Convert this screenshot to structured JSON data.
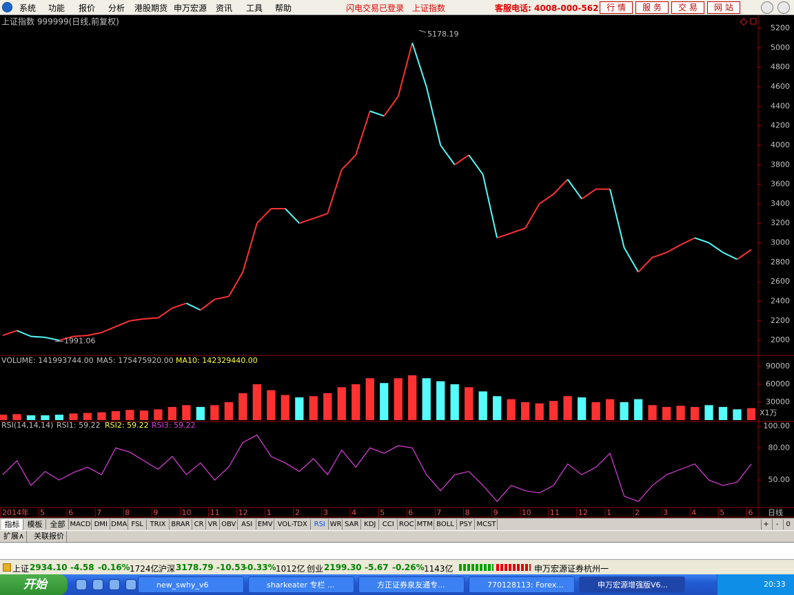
{
  "menu": {
    "items": [
      "系统",
      "功能",
      "报价",
      "分析",
      "港股期货",
      "申万宏源",
      "资讯",
      "工具",
      "帮助"
    ],
    "notices": [
      "闪电交易已登录",
      "上证指数"
    ],
    "hotline": "客服电话: 4008-000-562",
    "buttons": [
      "行 情",
      "服 务",
      "交 易",
      "网 站"
    ]
  },
  "chart_data": [
    {
      "type": "line",
      "title": "上证指数 999999(日线,前复权)",
      "up_color": "#ff3232",
      "down_color": "#54fcfc",
      "values": [
        2050,
        2100,
        2040,
        2030,
        2000,
        2040,
        2050,
        2080,
        2140,
        2200,
        2220,
        2230,
        2330,
        2380,
        2310,
        2420,
        2450,
        2700,
        3200,
        3350,
        3350,
        3200,
        3250,
        3300,
        3750,
        3900,
        4350,
        4300,
        4500,
        5050,
        4600,
        4000,
        3800,
        3900,
        3700,
        3050,
        3100,
        3150,
        3400,
        3500,
        3650,
        3450,
        3550,
        3550,
        2950,
        2700,
        2850,
        2900,
        2980,
        3050,
        3000,
        2900,
        2830,
        2930
      ],
      "annotations": {
        "high": 5178.19,
        "low": 1991.06
      },
      "ylim": [
        1860,
        5320
      ],
      "yticks": [
        2000,
        2200,
        2400,
        2600,
        2800,
        3000,
        3200,
        3400,
        3600,
        3800,
        4000,
        4200,
        4400,
        4600,
        4800,
        5000,
        5200
      ]
    },
    {
      "type": "bar",
      "header": [
        "VOLUME: 141993744.00",
        "MA5: 175475920.00",
        "MA10: 142329440.00"
      ],
      "unit": "X1万",
      "values": [
        9000,
        10000,
        8000,
        8000,
        9000,
        11000,
        12000,
        13000,
        15000,
        17000,
        16000,
        18000,
        22000,
        25000,
        22000,
        25000,
        30000,
        45000,
        60000,
        50000,
        42000,
        38000,
        40000,
        45000,
        55000,
        60000,
        70000,
        62000,
        70000,
        75000,
        70000,
        65000,
        60000,
        55000,
        48000,
        40000,
        35000,
        30000,
        28000,
        32000,
        40000,
        38000,
        30000,
        35000,
        30000,
        35000,
        25000,
        22000,
        24000,
        22000,
        25000,
        22000,
        18000,
        20000
      ],
      "ylim": [
        0,
        106000
      ],
      "yticks": [
        30000,
        60000,
        90000
      ]
    },
    {
      "type": "line",
      "header": [
        "RSI(14,14,14)",
        "RSI1: 59.22",
        "RSI2: 59.22",
        "RSI3: 59.22"
      ],
      "color": "#e040e0",
      "values": [
        55,
        68,
        45,
        58,
        50,
        57,
        62,
        55,
        80,
        76,
        68,
        60,
        72,
        55,
        66,
        50,
        62,
        85,
        92,
        72,
        66,
        58,
        70,
        55,
        78,
        62,
        80,
        75,
        82,
        80,
        55,
        40,
        55,
        58,
        45,
        30,
        45,
        40,
        38,
        45,
        65,
        55,
        62,
        75,
        35,
        30,
        45,
        55,
        60,
        65,
        50,
        45,
        48,
        65
      ],
      "ylim": [
        25,
        104
      ],
      "yticks": [
        {
          "value": 50,
          "label": "50.00"
        },
        {
          "value": 80,
          "label": "80.00"
        },
        {
          "value": 100,
          "label": "100.00"
        }
      ]
    }
  ],
  "date_axis": {
    "labels": [
      "2014年",
      "5",
      "6",
      "7",
      "8",
      "9",
      "10",
      "11",
      "12",
      "1",
      "2",
      "3",
      "4",
      "5",
      "6",
      "7",
      "8",
      "9",
      "10",
      "11",
      "12",
      "1",
      "2",
      "3",
      "4",
      "5",
      "6"
    ],
    "period": "日线"
  },
  "indicator_tabs": {
    "items": [
      "指标",
      "模板",
      "全部",
      "MACD",
      "DMI",
      "DMA",
      "FSL",
      "TRIX",
      "BRAR",
      "CR",
      "VR",
      "OBV",
      "ASI",
      "EMV",
      "VOL-TDX",
      "RSI",
      "WR",
      "SAR",
      "KDJ",
      "CCI",
      "ROC",
      "MTM",
      "BOLL",
      "PSY",
      "MCST"
    ],
    "controls": [
      "+",
      "-",
      "0"
    ]
  },
  "extra_tabs": [
    "扩展∧",
    "关联报价"
  ],
  "status_bar": {
    "indices": [
      {
        "name": "上证",
        "price": "2934.10",
        "change": "-4.58",
        "pct": "-0.16%",
        "amount": "1724亿"
      },
      {
        "name": "沪深",
        "price": "3178.79",
        "change": "-10.53",
        "pct": "-0.33%",
        "amount": "1012亿"
      },
      {
        "name": "创业",
        "price": "2199.30",
        "change": "-5.67",
        "pct": "-0.26%",
        "amount": "1143亿"
      }
    ],
    "broker": "申万宏源证券杭州一"
  },
  "taskbar": {
    "start": "开始",
    "windows": [
      "new_swhy_v6",
      "sharkeater 专栏 ...",
      "方正证券泉友通专...",
      "770128113: Forex...",
      "申万宏源增强版V6..."
    ],
    "clock": "20:33"
  }
}
